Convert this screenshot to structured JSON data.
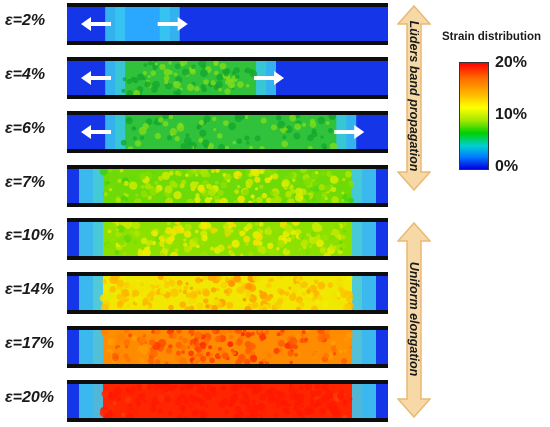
{
  "rows": [
    {
      "label": "ε=2%",
      "kind": "luders",
      "band": [
        0.15,
        0.32
      ],
      "arrows": true
    },
    {
      "label": "ε=4%",
      "kind": "luders",
      "band": [
        0.15,
        0.62
      ],
      "arrows": true
    },
    {
      "label": "ε=6%",
      "kind": "luders",
      "band": [
        0.15,
        0.87
      ],
      "arrows": true
    },
    {
      "label": "ε=7%",
      "kind": "uniform",
      "level": 0.58
    },
    {
      "label": "ε=10%",
      "kind": "uniform",
      "level": 0.55
    },
    {
      "label": "ε=14%",
      "kind": "uniform",
      "level": 0.4
    },
    {
      "label": "ε=17%",
      "kind": "uniform",
      "level": 0.2
    },
    {
      "label": "ε=20%",
      "kind": "uniform",
      "level": 0.02
    }
  ],
  "side_labels": {
    "luders": "Lüders band propagation",
    "uniform": "Uniform elongation"
  },
  "legend": {
    "title": "Strain distribution",
    "ticks": [
      "20%",
      "10%",
      "0%"
    ]
  },
  "colors": {
    "arrow_fill": "#f7d9a8",
    "arrow_stroke": "#e9b873",
    "base_blue": "#1535e8",
    "low_green": "#1fc21f",
    "high_red": "#ff2000"
  }
}
